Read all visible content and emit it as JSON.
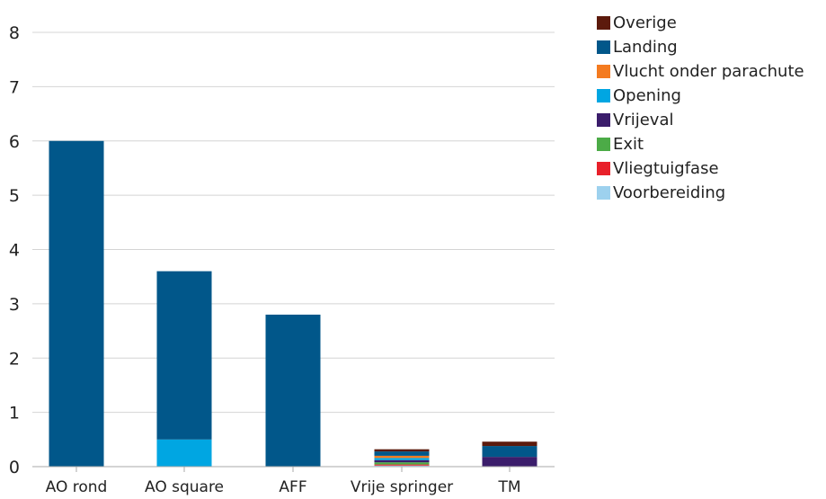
{
  "chart_data": {
    "type": "bar",
    "stacked": true,
    "categories": [
      "AO rond",
      "AO square",
      "AFF",
      "Vrije springer",
      "TM"
    ],
    "ylim": [
      0,
      8
    ],
    "yticks": [
      0,
      1,
      2,
      3,
      4,
      5,
      6,
      7,
      8
    ],
    "grid": true,
    "legend_position": "right",
    "series": [
      {
        "name": "Voorbereiding",
        "color": "#9dd1ee",
        "values": [
          0,
          0,
          0,
          0.02,
          0
        ]
      },
      {
        "name": "Vliegtuigfase",
        "color": "#e8202a",
        "values": [
          0,
          0,
          0,
          0.02,
          0
        ]
      },
      {
        "name": "Exit",
        "color": "#4cab47",
        "values": [
          0,
          0,
          0,
          0.04,
          0
        ]
      },
      {
        "name": "Vrijeval",
        "color": "#3b1d6b",
        "values": [
          0,
          0,
          0,
          0.04,
          0.18
        ]
      },
      {
        "name": "Opening",
        "color": "#00a6e2",
        "values": [
          0,
          0.5,
          0,
          0.04,
          0
        ]
      },
      {
        "name": "Vlucht onder parachute",
        "color": "#f47b20",
        "values": [
          0,
          0,
          0,
          0.04,
          0
        ]
      },
      {
        "name": "Landing",
        "color": "#01578a",
        "values": [
          6,
          3.1,
          2.8,
          0.08,
          0.2
        ]
      },
      {
        "name": "Overige",
        "color": "#5c1a0c",
        "values": [
          0,
          0,
          0,
          0.04,
          0.08
        ]
      }
    ],
    "legend_order": [
      "Overige",
      "Landing",
      "Vlucht onder parachute",
      "Opening",
      "Vrijeval",
      "Exit",
      "Vliegtuigfase",
      "Voorbereiding"
    ]
  }
}
